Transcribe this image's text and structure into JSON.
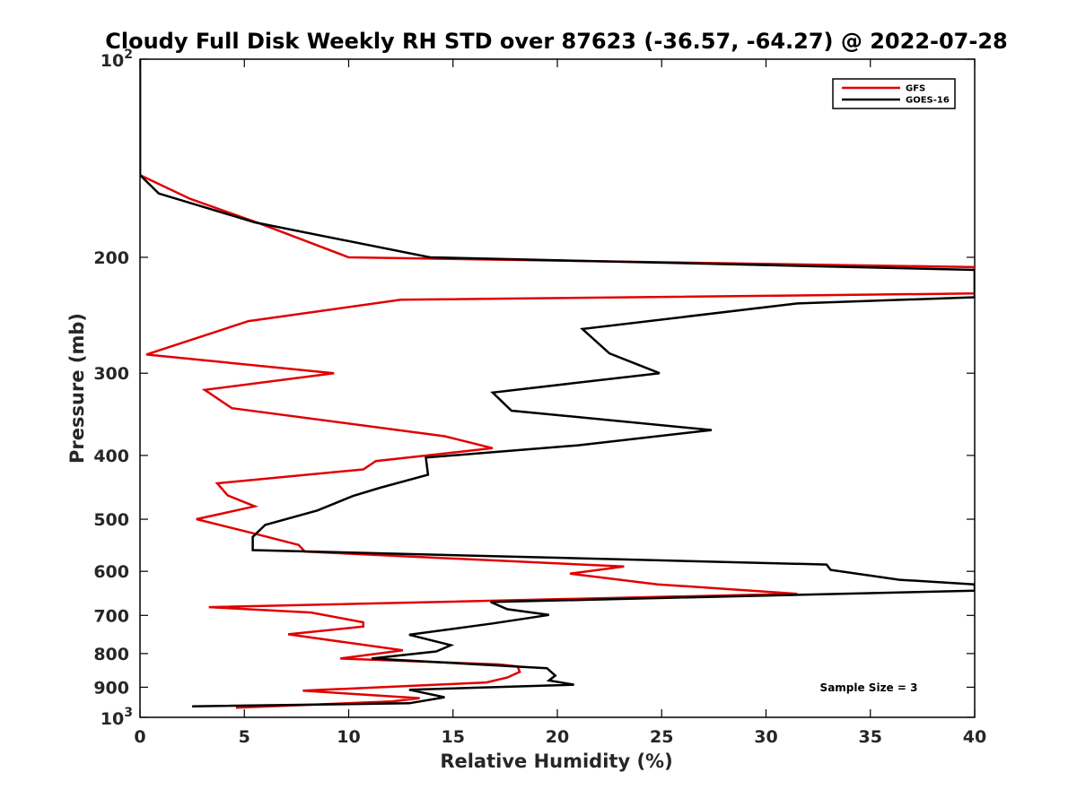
{
  "chart_data": {
    "type": "line",
    "title": "Cloudy Full Disk Weekly RH STD over 87623 (-36.57, -64.27) @ 2022-07-28",
    "xlabel": "Relative Humidity (%)",
    "ylabel": "Pressure (mb)",
    "xlim": [
      0,
      40
    ],
    "ylim": [
      100,
      1000
    ],
    "y_scale": "log",
    "y_reversed": true,
    "x_ticks": [
      "0",
      "5",
      "10",
      "15",
      "20",
      "25",
      "30",
      "35",
      "40"
    ],
    "y_ticks": [
      {
        "value": 100,
        "label": "10",
        "sup": "2"
      },
      {
        "value": 200,
        "label": "200",
        "sup": ""
      },
      {
        "value": 300,
        "label": "300",
        "sup": ""
      },
      {
        "value": 400,
        "label": "400",
        "sup": ""
      },
      {
        "value": 500,
        "label": "500",
        "sup": ""
      },
      {
        "value": 600,
        "label": "600",
        "sup": ""
      },
      {
        "value": 700,
        "label": "700",
        "sup": ""
      },
      {
        "value": 800,
        "label": "800",
        "sup": ""
      },
      {
        "value": 900,
        "label": "900",
        "sup": ""
      },
      {
        "value": 1000,
        "label": "10",
        "sup": "3"
      }
    ],
    "grid": false,
    "legend_position": "top-right",
    "annotation": "Sample Size = 3",
    "series": [
      {
        "name": "GFS",
        "color": "#e00000",
        "points": [
          [
            0,
            100
          ],
          [
            0,
            150
          ],
          [
            2.4,
            163
          ],
          [
            5.8,
            178
          ],
          [
            10,
            200
          ],
          [
            40,
            207
          ],
          [
            40,
            227
          ],
          [
            12.5,
            232
          ],
          [
            5.2,
            250
          ],
          [
            0.3,
            281
          ],
          [
            9.3,
            300
          ],
          [
            3.1,
            318
          ],
          [
            4.4,
            339
          ],
          [
            14.6,
            374
          ],
          [
            16.9,
            390
          ],
          [
            11.3,
            408
          ],
          [
            10.7,
            420
          ],
          [
            3.7,
            441
          ],
          [
            4.2,
            460
          ],
          [
            5.5,
            478
          ],
          [
            2.7,
            500
          ],
          [
            5.5,
            526
          ],
          [
            7.6,
            547
          ],
          [
            7.9,
            560
          ],
          [
            23.2,
            590
          ],
          [
            20.6,
            605
          ],
          [
            24.8,
            628
          ],
          [
            31.5,
            649
          ],
          [
            3.3,
            680
          ],
          [
            8.2,
            693
          ],
          [
            10.7,
            717
          ],
          [
            10.7,
            728
          ],
          [
            7.1,
            748
          ],
          [
            12.6,
            791
          ],
          [
            9.6,
            814
          ],
          [
            17.2,
            831
          ],
          [
            18.1,
            837
          ],
          [
            18.2,
            853
          ],
          [
            17.6,
            870
          ],
          [
            16.6,
            885
          ],
          [
            7.8,
            911
          ],
          [
            13.4,
            935
          ],
          [
            12.1,
            946
          ],
          [
            4.6,
            967
          ]
        ]
      },
      {
        "name": "GOES-16",
        "color": "#000000",
        "points": [
          [
            0,
            100
          ],
          [
            0,
            150
          ],
          [
            0.9,
            160
          ],
          [
            5.5,
            177
          ],
          [
            13.9,
            200
          ],
          [
            40,
            209
          ],
          [
            40,
            230
          ],
          [
            31.5,
            235
          ],
          [
            21.2,
            257
          ],
          [
            22.5,
            280
          ],
          [
            24.9,
            300
          ],
          [
            16.9,
            321
          ],
          [
            17.8,
            342
          ],
          [
            27.4,
            366
          ],
          [
            21,
            386
          ],
          [
            13.7,
            403
          ],
          [
            13.8,
            428
          ],
          [
            11.5,
            448
          ],
          [
            10.2,
            461
          ],
          [
            8.5,
            485
          ],
          [
            6,
            510
          ],
          [
            5.4,
            532
          ],
          [
            5.4,
            557
          ],
          [
            32.9,
            586
          ],
          [
            33.1,
            597
          ],
          [
            36.4,
            618
          ],
          [
            40,
            628
          ],
          [
            40,
            642
          ],
          [
            16.8,
            668
          ],
          [
            17.6,
            685
          ],
          [
            19.6,
            699
          ],
          [
            16.9,
            720
          ],
          [
            12.9,
            749
          ],
          [
            14.9,
            777
          ],
          [
            14.2,
            794
          ],
          [
            11.1,
            814
          ],
          [
            19.5,
            842
          ],
          [
            19.9,
            864
          ],
          [
            19.6,
            879
          ],
          [
            20.8,
            892
          ],
          [
            12.9,
            908
          ],
          [
            14.6,
            932
          ],
          [
            12.9,
            952
          ],
          [
            2.5,
            962
          ]
        ]
      }
    ]
  }
}
